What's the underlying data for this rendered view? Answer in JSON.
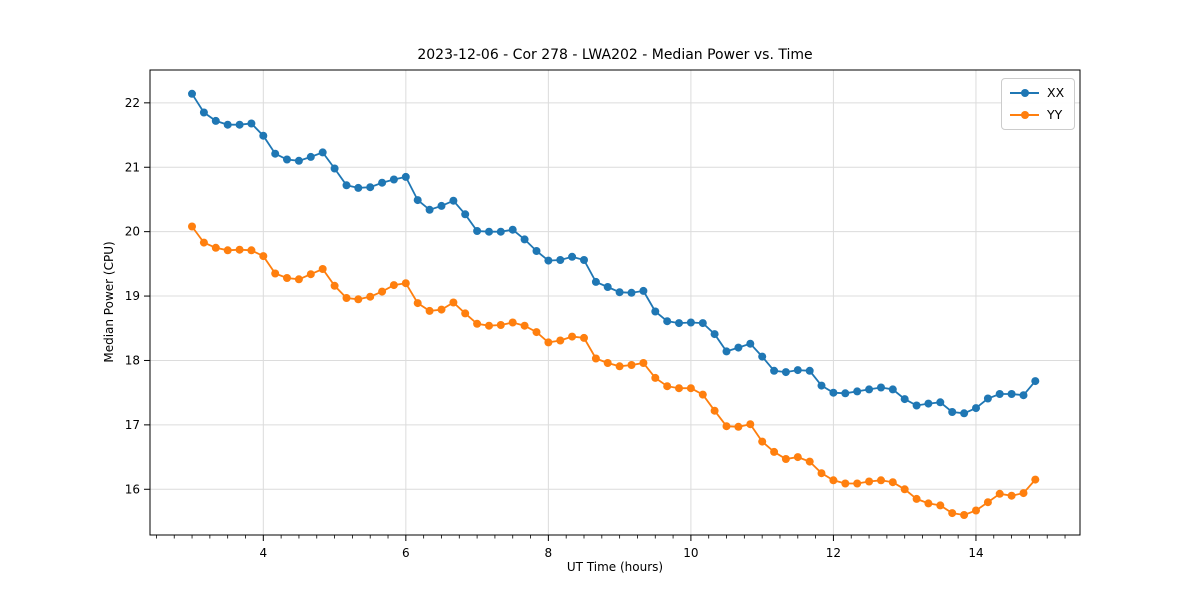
{
  "chart": {
    "title": "2023-12-06 - Cor 278 - LWA202 - Median Power vs. Time",
    "xlabel": "UT Time (hours)",
    "ylabel": "Median Power (CPU)"
  },
  "colors": {
    "series_xx": "#1f77b4",
    "series_yy": "#ff7f0e",
    "grid": "#dcdcdc",
    "axis": "#000000",
    "background": "#ffffff",
    "legend_border": "#cccccc"
  },
  "chart_data": {
    "type": "line",
    "title": "2023-12-06 - Cor 278 - LWA202 - Median Power vs. Time",
    "xlabel": "UT Time (hours)",
    "ylabel": "Median Power (CPU)",
    "xlim": [
      2.41,
      15.46
    ],
    "ylim": [
      15.29,
      22.51
    ],
    "xticks": [
      4,
      6,
      8,
      10,
      12,
      14
    ],
    "yticks": [
      16,
      17,
      18,
      19,
      20,
      21,
      22
    ],
    "x_minor_step": 0.25,
    "grid": true,
    "legend_position": "upper right",
    "marker": "o",
    "x": [
      3.0,
      3.167,
      3.333,
      3.5,
      3.667,
      3.833,
      4.0,
      4.167,
      4.333,
      4.5,
      4.667,
      4.833,
      5.0,
      5.167,
      5.333,
      5.5,
      5.667,
      5.833,
      6.0,
      6.167,
      6.333,
      6.5,
      6.667,
      6.833,
      7.0,
      7.167,
      7.333,
      7.5,
      7.667,
      7.833,
      8.0,
      8.167,
      8.333,
      8.5,
      8.667,
      8.833,
      9.0,
      9.167,
      9.333,
      9.5,
      9.667,
      9.833,
      10.0,
      10.167,
      10.333,
      10.5,
      10.667,
      10.833,
      11.0,
      11.167,
      11.333,
      11.5,
      11.667,
      11.833,
      12.0,
      12.167,
      12.333,
      12.5,
      12.667,
      12.833,
      13.0,
      13.167,
      13.333,
      13.5,
      13.667,
      13.833,
      14.0,
      14.167,
      14.333,
      14.5,
      14.667,
      14.833
    ],
    "series": [
      {
        "name": "XX",
        "color": "#1f77b4",
        "values": [
          22.14,
          21.85,
          21.72,
          21.66,
          21.66,
          21.68,
          21.49,
          21.21,
          21.12,
          21.1,
          21.16,
          21.23,
          20.98,
          20.72,
          20.68,
          20.69,
          20.76,
          20.81,
          20.85,
          20.49,
          20.34,
          20.4,
          20.48,
          20.27,
          20.01,
          20.0,
          20.0,
          20.03,
          19.88,
          19.7,
          19.55,
          19.56,
          19.61,
          19.56,
          19.22,
          19.14,
          19.06,
          19.05,
          19.08,
          18.76,
          18.61,
          18.58,
          18.59,
          18.58,
          18.41,
          18.14,
          18.2,
          18.26,
          18.06,
          17.84,
          17.82,
          17.85,
          17.84,
          17.61,
          17.5,
          17.49,
          17.52,
          17.55,
          17.58,
          17.55,
          17.4,
          17.3,
          17.33,
          17.35,
          17.2,
          17.18,
          17.26,
          17.41,
          17.48,
          17.48,
          17.46,
          17.68
        ]
      },
      {
        "name": "YY",
        "color": "#ff7f0e",
        "values": [
          20.08,
          19.83,
          19.75,
          19.71,
          19.72,
          19.71,
          19.62,
          19.35,
          19.28,
          19.26,
          19.34,
          19.42,
          19.16,
          18.97,
          18.95,
          18.99,
          19.07,
          19.17,
          19.2,
          18.89,
          18.77,
          18.79,
          18.9,
          18.73,
          18.57,
          18.54,
          18.55,
          18.59,
          18.54,
          18.44,
          18.28,
          18.31,
          18.37,
          18.35,
          18.03,
          17.96,
          17.91,
          17.93,
          17.96,
          17.73,
          17.6,
          17.57,
          17.57,
          17.47,
          17.22,
          16.98,
          16.97,
          17.01,
          16.74,
          16.58,
          16.47,
          16.5,
          16.43,
          16.25,
          16.14,
          16.09,
          16.09,
          16.12,
          16.14,
          16.11,
          16.0,
          15.85,
          15.78,
          15.75,
          15.63,
          15.6,
          15.67,
          15.8,
          15.93,
          15.9,
          15.94,
          16.15
        ]
      }
    ]
  }
}
